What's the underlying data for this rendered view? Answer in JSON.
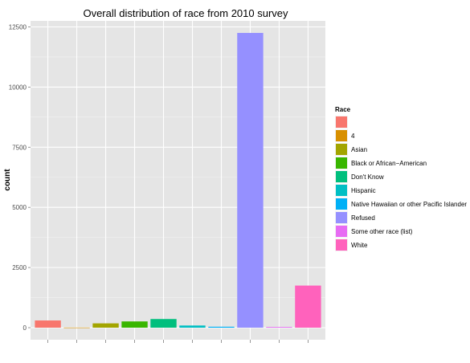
{
  "chart_data": {
    "type": "bar",
    "title": "Overall distribution of race from 2010 survey",
    "xlabel": "",
    "ylabel": "count",
    "ylim": [
      -500,
      12750
    ],
    "yticks": [
      0,
      2500,
      5000,
      7500,
      10000,
      12500
    ],
    "ytick_labels": [
      "0",
      "2500",
      "5000",
      "7500",
      "10000",
      "12500"
    ],
    "grid": true,
    "legend_position": "right",
    "legend_title": "Race",
    "categories": [
      "",
      "4",
      "Asian",
      "Black or African−American",
      "Don't Know",
      "Hispanic",
      "Native Hawaiian or other Pacific Islander",
      "Refused",
      "Some other race (list)",
      "White"
    ],
    "values": [
      300,
      5,
      180,
      260,
      360,
      90,
      40,
      12250,
      30,
      1750
    ],
    "colors": [
      "#F8766D",
      "#D89000",
      "#A3A500",
      "#39B600",
      "#00BF7D",
      "#00BFC4",
      "#00B0F6",
      "#9590FF",
      "#E76BF3",
      "#FF62BC"
    ]
  }
}
